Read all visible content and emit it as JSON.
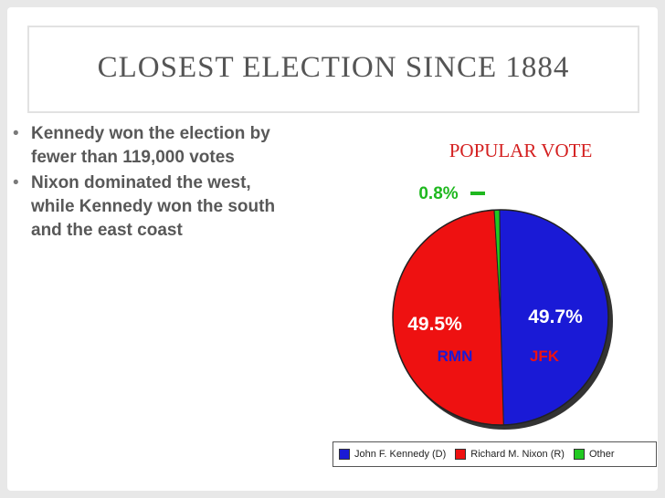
{
  "slide": {
    "title": "CLOSEST ELECTION SINCE 1884",
    "bullets": [
      "Kennedy won the election by fewer than 119,000 votes",
      "Nixon dominated the west, while Kennedy won the south and the east coast"
    ]
  },
  "chart_data": {
    "type": "pie",
    "title": "POPULAR VOTE",
    "slices": [
      {
        "name": "John F. Kennedy (D)",
        "value": 49.7,
        "label": "49.7%",
        "short": "JFK",
        "color": "#1a1ad6"
      },
      {
        "name": "Richard M. Nixon (R)",
        "value": 49.5,
        "label": "49.5%",
        "short": "RMN",
        "color": "#ee1111"
      },
      {
        "name": "Other",
        "value": 0.8,
        "label": "0.8%",
        "short": "",
        "color": "#22c922"
      }
    ],
    "legend_position": "bottom",
    "colors": {
      "title": "#d42020",
      "kennedy_label": "#ffffff",
      "nixon_label": "#ffffff",
      "other_label": "#1fb81f",
      "short_on_red": "#1a1ad6",
      "short_on_blue": "#ee1111"
    }
  }
}
